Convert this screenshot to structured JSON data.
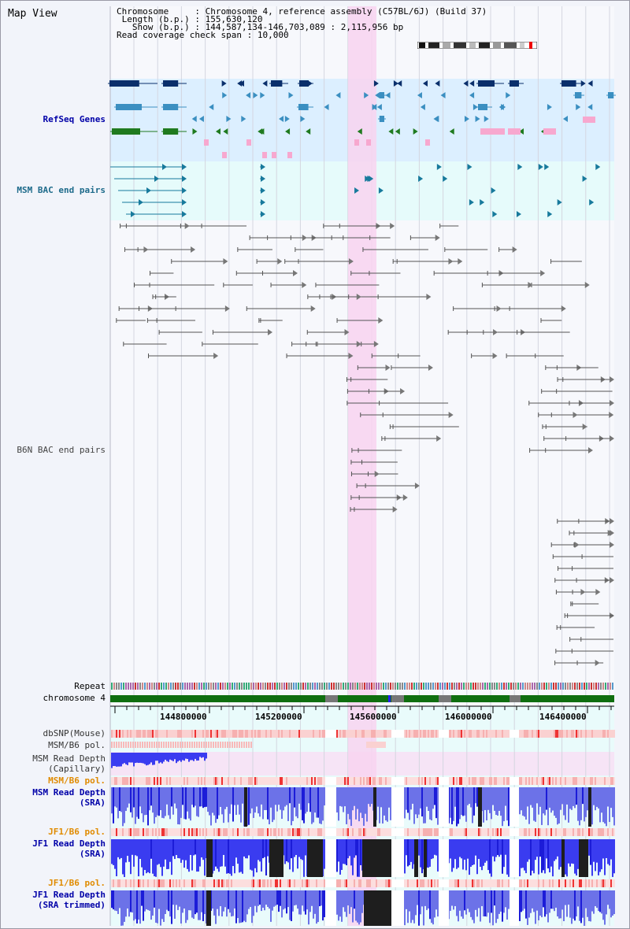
{
  "window": {
    "title": "Map View"
  },
  "info": {
    "chromosome_key": "Chromosome",
    "chromosome_val": "Chromosome 4, reference assembly (C57BL/6J) (Build 37)",
    "length_key": "Length (b.p.)",
    "length_val": "155,630,120",
    "show_key": "Show (b.p.)",
    "show_val": "144,587,134-146,703,089 : 2,115,956 bp",
    "coverage_key": "Read coverage check span",
    "coverage_val": "10,000"
  },
  "tracks": {
    "refseq": "RefSeq Genes",
    "msm_bac": "MSM BAC end pairs",
    "b6n_bac": "B6N BAC end pairs",
    "repeat": "Repeat",
    "chromosome": "chromosome 4",
    "dbsnp": "dbSNP(Mouse)",
    "msm_b6_pol": "MSM/B6 pol.",
    "msm_depth_cap_1": "MSM Read Depth",
    "msm_depth_cap_2": "(Capillary)",
    "msm_b6_pol2": "MSM/B6 pol.",
    "msm_depth_sra_1": "MSM Read Depth",
    "msm_depth_sra_2": "(SRA)",
    "jf1_b6_pol": "JF1/B6 pol.",
    "jf1_depth_sra_1": "JF1 Read Depth",
    "jf1_depth_sra_2": "(SRA)",
    "jf1_b6_pol2": "JF1/B6 pol.",
    "jf1_depth_trim_1": "JF1 Read Depth",
    "jf1_depth_trim_2": "(SRA trimmed)"
  },
  "axis": {
    "ticks": [
      "144800000",
      "145200000",
      "145600000",
      "146000000",
      "146400000"
    ]
  },
  "colors": {
    "refseq_bg": "#dcefff",
    "msm_bg": "#e6fbfb",
    "highlight": "#f8d4f0",
    "navy": "#0a2f6b",
    "steel": "#3b8fc1",
    "green": "#1f7a1f",
    "pink": "#f7a8cf",
    "teal": "#177a9c",
    "gray_feature": "#777777",
    "chromosome_bar": "#0f6e0f",
    "depth_blue": "#3a3cf0",
    "depth_black": "#1e1e1e",
    "snp_pink": "#f4a3a3"
  }
}
